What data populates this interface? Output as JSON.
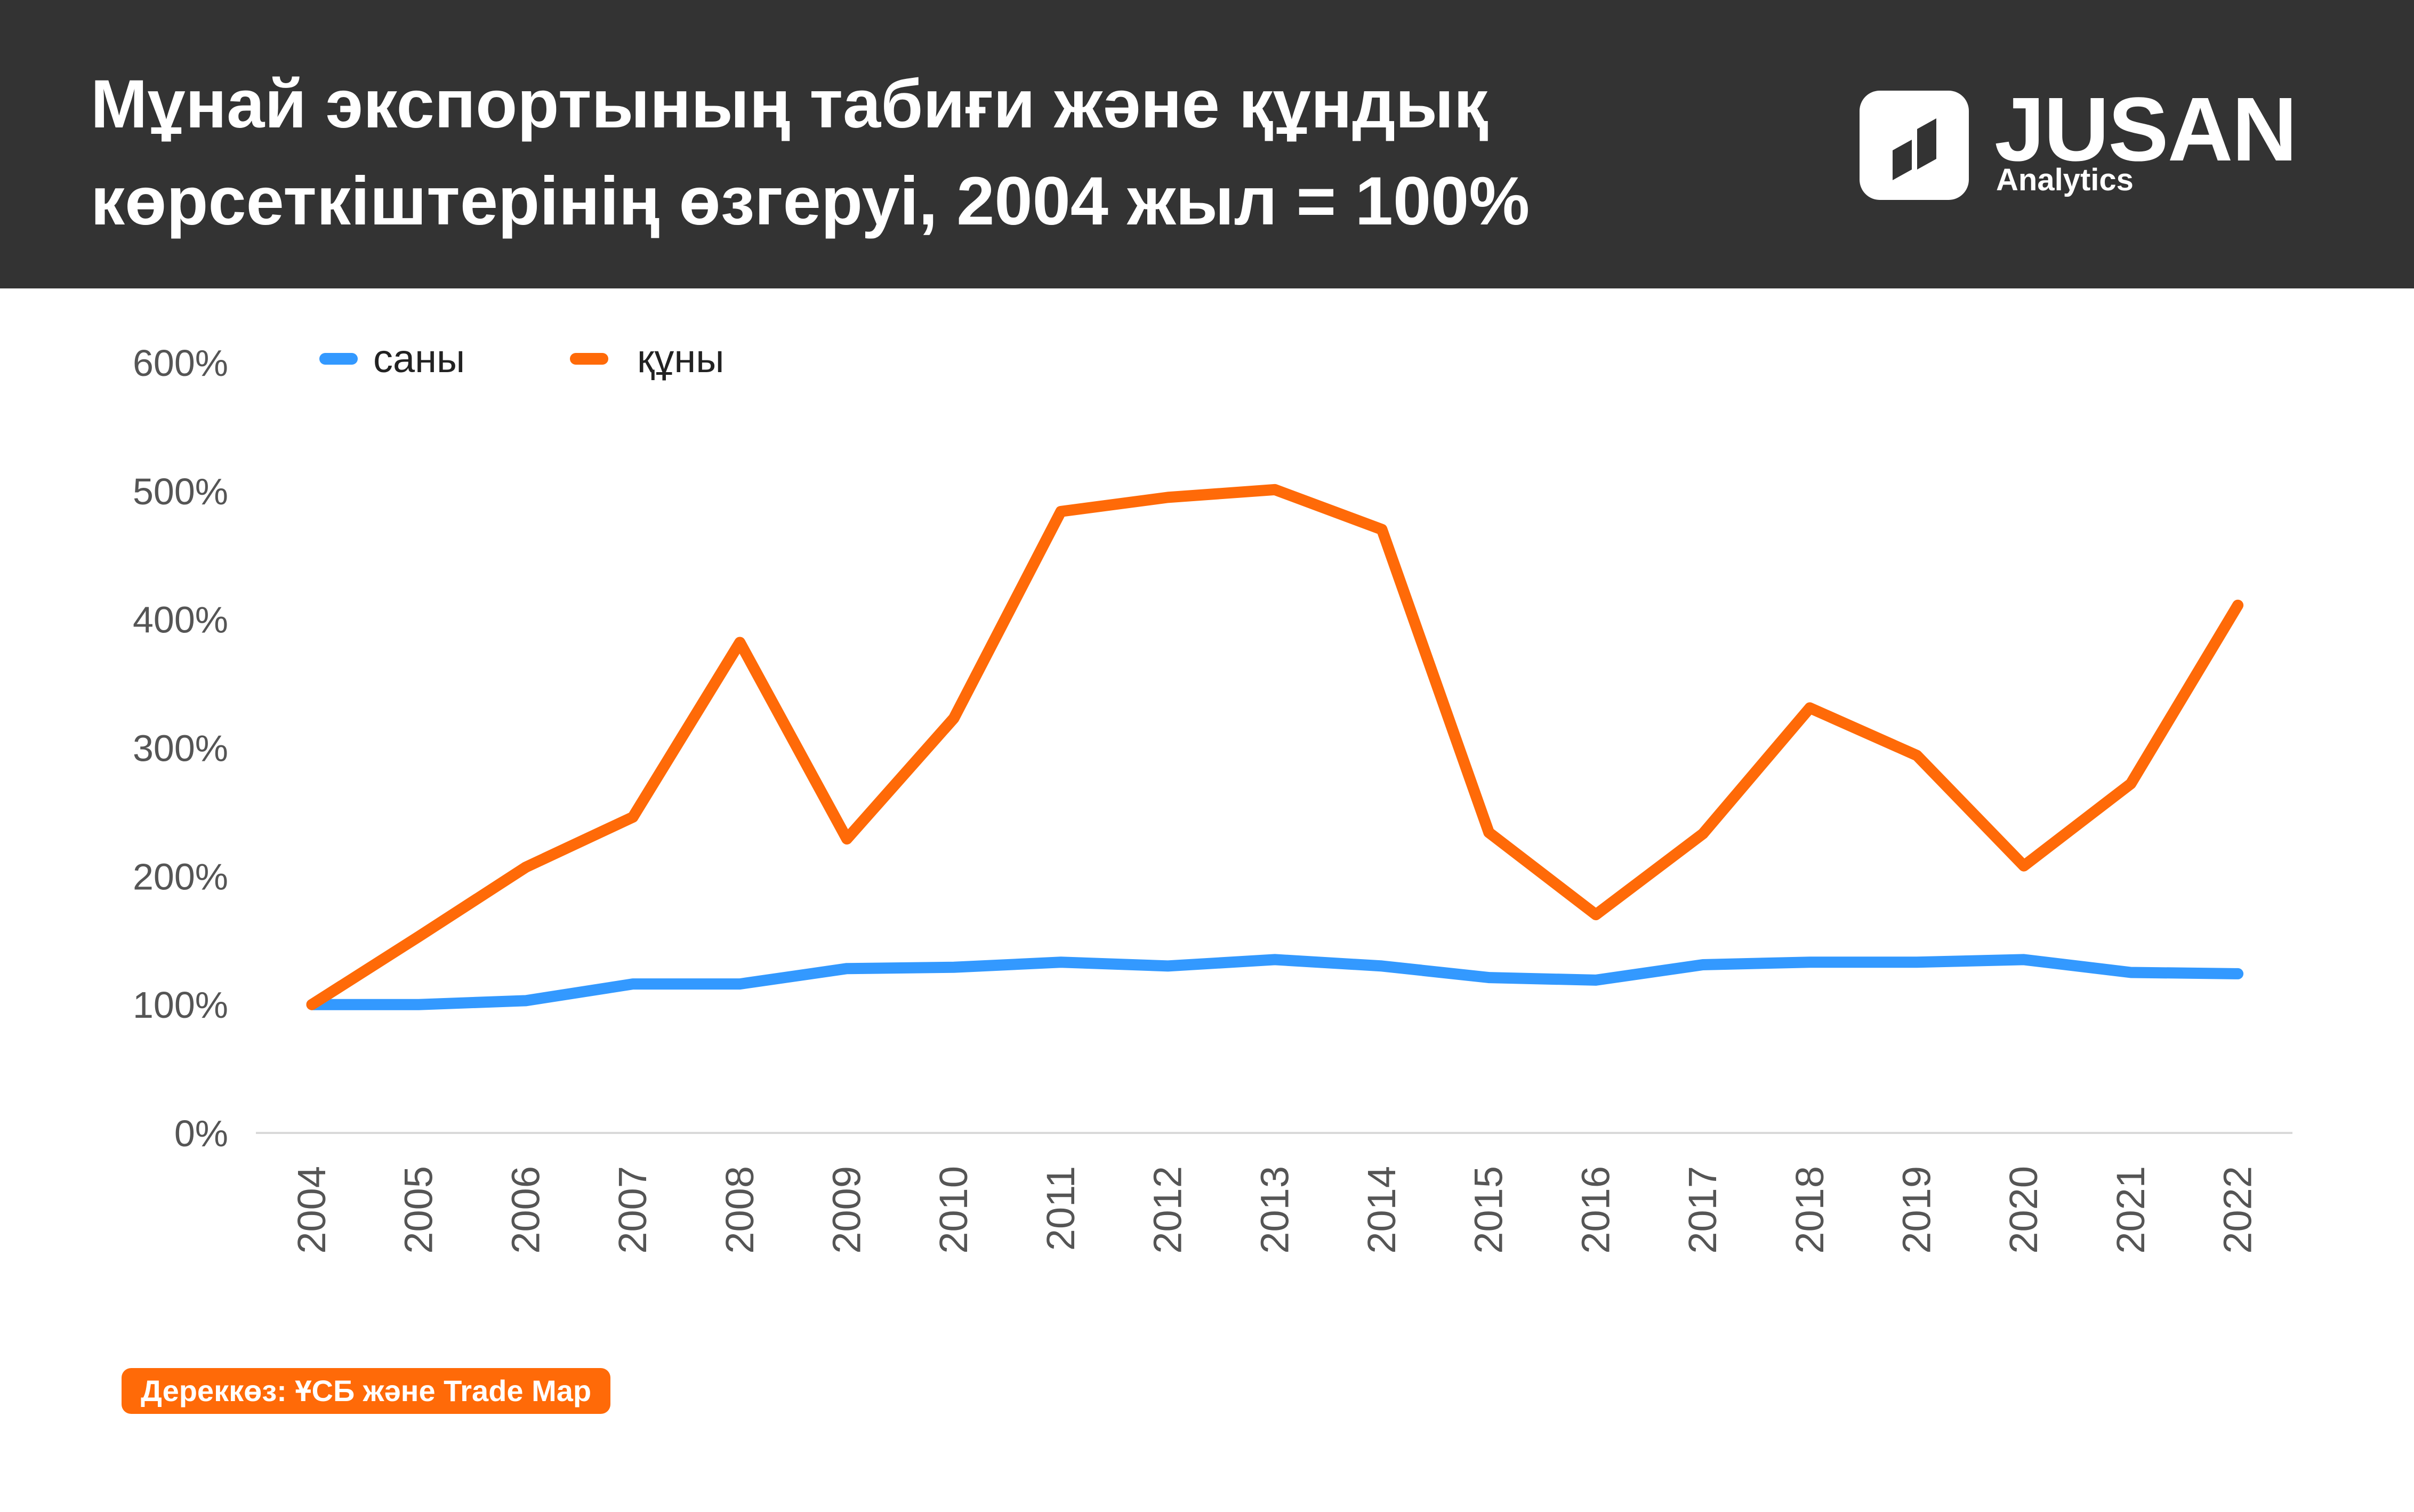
{
  "header": {
    "title_line1": "Мұнай экспортының табиғи және құндық",
    "title_line2": "көрсеткіштерінің өзгеруі, 2004 жыл = 100%",
    "background": "#333333"
  },
  "logo": {
    "word": "JUSAN",
    "sub": "Analytics",
    "icon": "jusan-logo-icon"
  },
  "source": {
    "label": "Дереккөз: ҰСБ және Trade Map",
    "color": "#ff6a08"
  },
  "chart_data": {
    "type": "line",
    "title": "Мұнай экспортының табиғи және құндық көрсеткіштерінің өзгеруі, 2004 жыл = 100%",
    "xlabel": "",
    "ylabel": "",
    "categories": [
      "2004",
      "2005",
      "2006",
      "2007",
      "2008",
      "2009",
      "2010",
      "2011",
      "2012",
      "2013",
      "2014",
      "2015",
      "2016",
      "2017",
      "2018",
      "2019",
      "2020",
      "2021",
      "2022"
    ],
    "series": [
      {
        "name": "саны",
        "color": "#3399ff",
        "values": [
          100,
          100,
          103,
          116,
          116,
          128,
          129,
          133,
          130,
          135,
          130,
          121,
          119,
          131,
          133,
          133,
          135,
          125,
          124
        ]
      },
      {
        "name": "құны",
        "color": "#ff6a08",
        "values": [
          100,
          153,
          207,
          246,
          382,
          229,
          323,
          484,
          495,
          501,
          470,
          234,
          170,
          233,
          331,
          294,
          208,
          272,
          411
        ]
      }
    ],
    "ylim": [
      0,
      600
    ],
    "yticks": [
      0,
      100,
      200,
      300,
      400,
      500,
      600
    ],
    "ytick_labels": [
      "0%",
      "100%",
      "200%",
      "300%",
      "400%",
      "500%",
      "600%"
    ],
    "legend": "top-left",
    "grid": false
  }
}
